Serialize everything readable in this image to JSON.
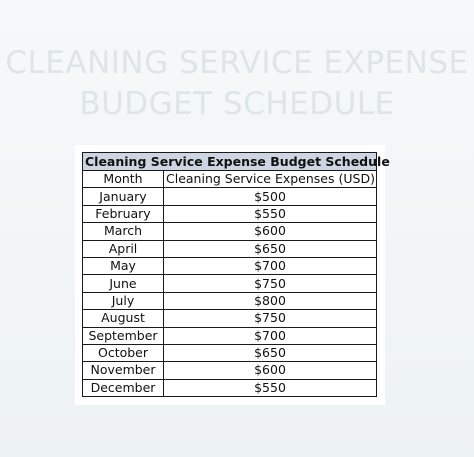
{
  "page": {
    "title_line1": "CLEANING SERVICE EXPENSE",
    "title_line2": "BUDGET SCHEDULE"
  },
  "table": {
    "banner": "Cleaning Service Expense Budget Schedule",
    "headers": [
      "Month",
      "Cleaning Service Expenses (USD)"
    ],
    "rows": [
      {
        "month": "January",
        "expense": "$500"
      },
      {
        "month": "February",
        "expense": "$550"
      },
      {
        "month": "March",
        "expense": "$600"
      },
      {
        "month": "April",
        "expense": "$650"
      },
      {
        "month": "May",
        "expense": "$700"
      },
      {
        "month": "June",
        "expense": "$750"
      },
      {
        "month": "July",
        "expense": "$800"
      },
      {
        "month": "August",
        "expense": "$750"
      },
      {
        "month": "September",
        "expense": "$700"
      },
      {
        "month": "October",
        "expense": "$650"
      },
      {
        "month": "November",
        "expense": "$600"
      },
      {
        "month": "December",
        "expense": "$550"
      }
    ]
  },
  "colors": {
    "banner_fill": "#cdd5e2",
    "title_text": "#dde5e9",
    "background": "#f6f9fa"
  }
}
